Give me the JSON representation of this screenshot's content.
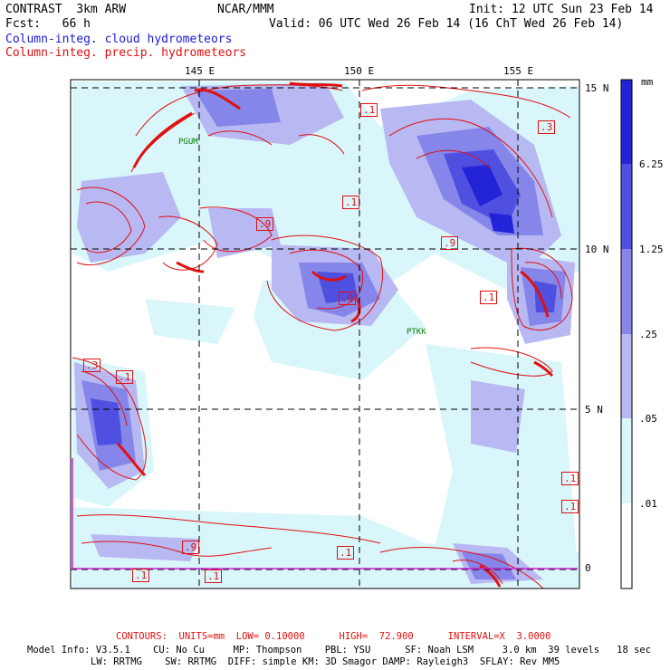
{
  "header": {
    "product": "CONTRAST  3km ARW",
    "forecast": "Fcst:   66 h",
    "org": "NCAR/MMM",
    "init": "Init: 12 UTC Sun 23 Feb 14",
    "valid": "Valid: 06 UTC Wed 26 Feb 14 (16 ChT Wed 26 Feb 14)",
    "field1": "Column-integ. cloud hydrometeors",
    "field2": "Column-integ. precip. hydrometeors"
  },
  "axes": {
    "lon_labels": [
      "145 E",
      "150 E",
      "155 E"
    ],
    "lat_labels": [
      "15 N",
      "10 N",
      "5 N",
      "0"
    ]
  },
  "stations": [
    "PGUM",
    "PTKK"
  ],
  "contour_labels": [
    ".1",
    ".9",
    ".3"
  ],
  "legend": {
    "unit": "mm",
    "levels": [
      "6.25",
      "1.25",
      ".25",
      ".05",
      ".01"
    ],
    "colors": [
      "#2323d8",
      "#4f4fe0",
      "#8585ea",
      "#b8b8f2",
      "#d9f6fb",
      "#ffffff"
    ]
  },
  "footer": {
    "contours_prefix": "CONTOURS:  UNITS=mm  LOW= 0.10000      HIGH=  72.900      INTERVAL=X  3.0000",
    "model_line1": "Model Info: V3.5.1    CU: No Cu     MP: Thompson    PBL: YSU      SF: Noah LSM     3.0 km  39 levels   18 sec",
    "model_line2": "LW: RRTMG    SW: RRTMG  DIFF: simple KM: 3D Smagor DAMP: Rayleigh3  SFLAY: Rev MM5"
  }
}
